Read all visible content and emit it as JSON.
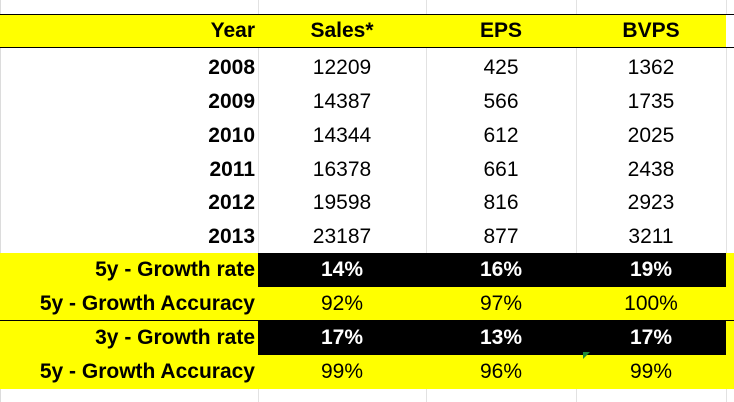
{
  "header": {
    "year": "Year",
    "sales": "Sales*",
    "eps": "EPS",
    "bvps": "BVPS"
  },
  "rows": [
    {
      "year": "2008",
      "sales": "12209",
      "eps": "425",
      "bvps": "1362"
    },
    {
      "year": "2009",
      "sales": "14387",
      "eps": "566",
      "bvps": "1735"
    },
    {
      "year": "2010",
      "sales": "14344",
      "eps": "612",
      "bvps": "2025"
    },
    {
      "year": "2011",
      "sales": "16378",
      "eps": "661",
      "bvps": "2438"
    },
    {
      "year": "2012",
      "sales": "19598",
      "eps": "816",
      "bvps": "2923"
    },
    {
      "year": "2013",
      "sales": "23187",
      "eps": "877",
      "bvps": "3211"
    }
  ],
  "summary": [
    {
      "label": "5y - Growth rate",
      "sales": "14%",
      "eps": "16%",
      "bvps": "19%"
    },
    {
      "label": "5y - Growth Accuracy",
      "sales": "92%",
      "eps": "97%",
      "bvps": "100%"
    },
    {
      "label": "3y - Growth rate",
      "sales": "17%",
      "eps": "13%",
      "bvps": "17%"
    },
    {
      "label": "5y - Growth Accuracy",
      "sales": "99%",
      "eps": "96%",
      "bvps": "99%"
    }
  ],
  "colors": {
    "highlight": "#ffff00",
    "dark": "#000000",
    "text": "#000000",
    "comment_marker": "#1f8a3a"
  }
}
